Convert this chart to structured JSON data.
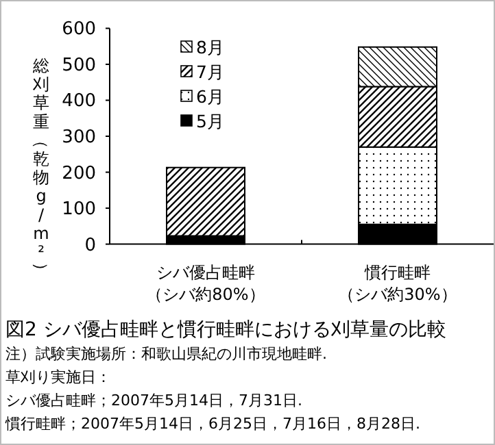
{
  "chart_data": {
    "type": "bar",
    "stacked": true,
    "title": "図2 シバ優占畦畔と慣行畦畔における刈草量の比較",
    "ylabel": "総刈草重（乾物g/m²）",
    "categories": [
      "シバ優占畦畔（シバ約80%）",
      "慣行畦畔（シバ約30%）"
    ],
    "series": [
      {
        "name": "5月",
        "color": "#000000",
        "values": [
          23,
          55
        ]
      },
      {
        "name": "6月",
        "color": "#000000",
        "values": [
          0,
          215
        ]
      },
      {
        "name": "7月",
        "color": "#000000",
        "values": [
          190,
          168
        ]
      },
      {
        "name": "8月",
        "color": "#000000",
        "values": [
          0,
          110
        ]
      }
    ],
    "ylim": [
      0,
      600
    ],
    "yticks": [
      0,
      100,
      200,
      300,
      400,
      500,
      600
    ],
    "legend": "top left",
    "grid": false,
    "annotations": [
      "注）試験実施場所：和歌山県紀の川市現地畦畔.",
      "草刈り実施日：",
      "シバ優占畦畔；2007年5月14日，7月31日.",
      "慣行畦畔；2007年5月14日，6月25日，7月16日，8月28日."
    ]
  }
}
